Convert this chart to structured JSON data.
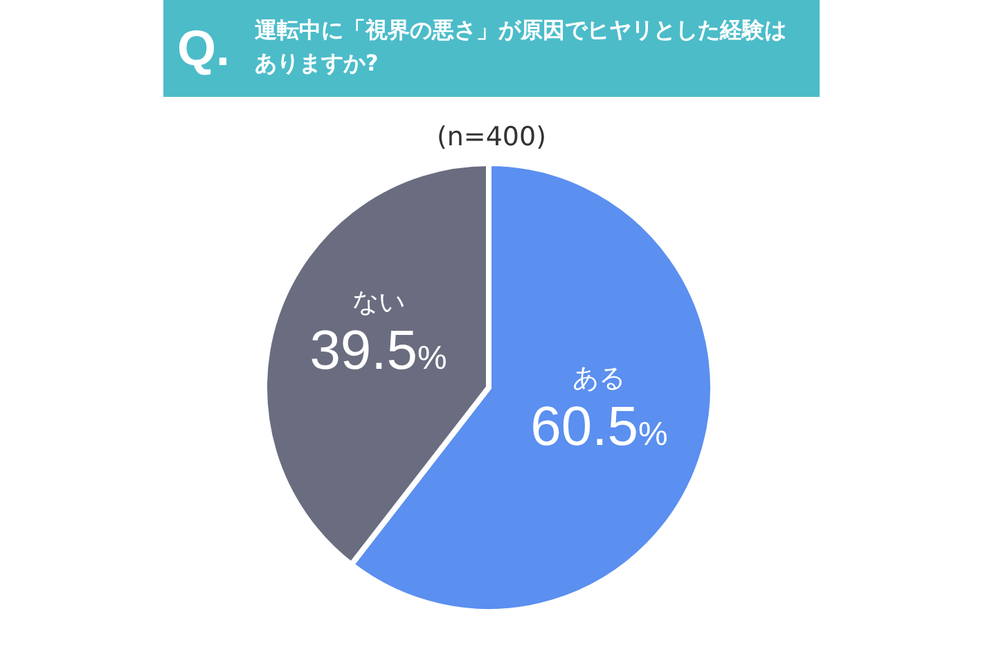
{
  "chart_data": {
    "type": "pie",
    "title": "運転中に「視界の悪さ」が原因でヒヤリとした経験はありますか?",
    "subtitle": "(n=400)",
    "annotations": [
      "Q."
    ],
    "categories": [
      "ある",
      "ない"
    ],
    "values": [
      60.5,
      39.5
    ],
    "colors": [
      "#5b8ff0",
      "#6a6d80"
    ],
    "value_labels": [
      "60.5%",
      "39.5%"
    ]
  }
}
